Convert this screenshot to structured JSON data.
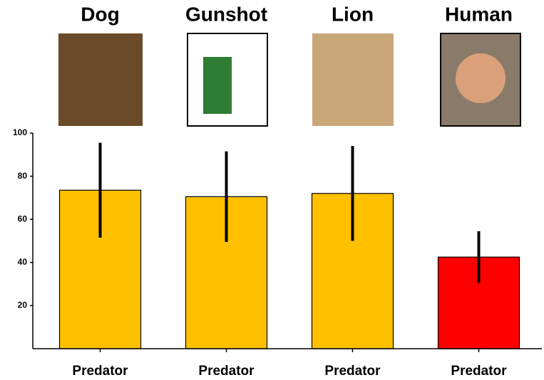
{
  "chart_data": {
    "type": "bar",
    "group_labels": [
      "Dog",
      "Gunshot",
      "Lion",
      "Human"
    ],
    "categories": [
      "Predator",
      "Predator",
      "Predator",
      "Predator"
    ],
    "values": [
      73.5,
      70.5,
      72,
      42.5
    ],
    "errors": [
      22,
      21,
      22,
      12
    ],
    "colors": [
      "#ffc000",
      "#ffc000",
      "#ffc000",
      "#ff0000"
    ],
    "ylim": [
      0,
      100
    ],
    "yticks": [
      20,
      40,
      60,
      80,
      100
    ]
  }
}
